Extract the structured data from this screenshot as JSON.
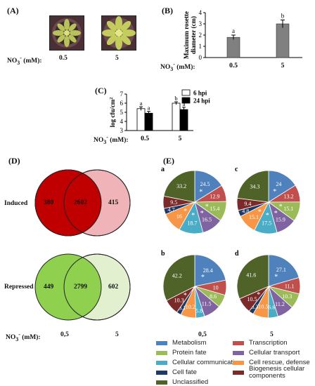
{
  "panels": {
    "A": {
      "letter": "(A)",
      "x_label": "NO3- (mM):",
      "x_label_main": "NO",
      "x_label_sub": "3",
      "x_label_sup": "-",
      "x_label_tail": " (mM):",
      "conditions": [
        "0.5",
        "5"
      ]
    },
    "B": {
      "letter": "(B)",
      "x_label_main": "NO",
      "x_label_sub": "3",
      "x_label_sup": "-",
      "x_label_tail": " (mM):"
    },
    "C": {
      "letter": "(C)",
      "x_label_main": "NO",
      "x_label_sub": "3",
      "x_label_sup": "-",
      "x_label_tail": " (mM):"
    },
    "D": {
      "letter": "(D)",
      "induced_label": "Induced",
      "repressed_label": "Repressed",
      "induced": {
        "left": "380",
        "overlap": "2602",
        "right": "415"
      },
      "repressed": {
        "left": "449",
        "overlap": "2799",
        "right": "602"
      },
      "x_label_main": "NO",
      "x_label_sub": "3",
      "x_label_sup": "-",
      "x_label_tail": " (mM):",
      "conditions": [
        "0,5",
        "5"
      ],
      "colors": {
        "induced_left": "#c00000",
        "induced_right": "#f0b3b8",
        "repressed_left": "#8fd14f",
        "repressed_right": "#e2f0d0"
      }
    },
    "E": {
      "letter": "(E)",
      "conditions": [
        "0,5",
        "5"
      ],
      "legend": [
        {
          "label": "Metabolism",
          "color": "#4f81bd"
        },
        {
          "label": "Transcription",
          "color": "#c0504d"
        },
        {
          "label": "Protein fate",
          "color": "#9bbb59"
        },
        {
          "label": "Cellular transport",
          "color": "#8064a2"
        },
        {
          "label": "Cellular communication",
          "color": "#4bacc6"
        },
        {
          "label": "Cell rescue, defense",
          "color": "#f79646"
        },
        {
          "label": "Cell fate",
          "color": "#1f3864"
        },
        {
          "label": "Biogenesis cellular components",
          "color": "#7b2a2a"
        },
        {
          "label": "Unclassified",
          "color": "#4f6228"
        }
      ]
    }
  },
  "chart_data": [
    {
      "type": "bar",
      "panel": "B",
      "categories": [
        "0.5",
        "5"
      ],
      "values": [
        1.8,
        3.0
      ],
      "errors": [
        0.2,
        0.35
      ],
      "significance": [
        "a",
        "b"
      ],
      "ylabel": "Maximum rosette diameter (cm)",
      "ylim": [
        0,
        4
      ],
      "yticks": [
        "0",
        "1",
        "2",
        "3",
        "4"
      ],
      "color": "#808080"
    },
    {
      "type": "bar",
      "panel": "C",
      "categories": [
        "0.5",
        "5"
      ],
      "series": [
        {
          "name": "6 hpi",
          "values": [
            5.4,
            6.0
          ],
          "errors": [
            0.2,
            0.15
          ],
          "significance": [
            "a",
            "b"
          ],
          "color": "#ffffff"
        },
        {
          "name": "24 hpi",
          "values": [
            4.9,
            5.3
          ],
          "errors": [
            0.2,
            0.25
          ],
          "significance": [
            "a",
            "a"
          ],
          "color": "#000000"
        }
      ],
      "ylabel": "log cfu/cm2",
      "ylabel_main": "log cfu/cm",
      "ylabel_sup": "2",
      "ylim": [
        3,
        7
      ],
      "yticks": [
        "3",
        "4",
        "5",
        "6",
        "7"
      ]
    },
    {
      "type": "pie",
      "panel": "a",
      "labels": [
        "Metabolism",
        "Transcription",
        "Protein fate",
        "Cellular transport",
        "Cellular communication",
        "Cell rescue, defense",
        "Cell fate",
        "Biogenesis cellular components",
        "Unclassified"
      ],
      "values": [
        24.5,
        12.9,
        15.4,
        16.5,
        18.7,
        16,
        4.7,
        9.5,
        33.2
      ],
      "value_labels": [
        "24.5",
        "12.9",
        "15.4",
        "16.5",
        "18.7",
        "16",
        "4.7",
        "9.5",
        "33.2"
      ]
    },
    {
      "type": "pie",
      "panel": "b",
      "labels": [
        "Metabolism",
        "Transcription",
        "Protein fate",
        "Cellular transport",
        "Cellular communication",
        "Cell rescue, defense",
        "Cell fate",
        "Biogenesis cellular components",
        "Unclassified"
      ],
      "values": [
        28.4,
        10,
        8.6,
        11.5,
        5.8,
        10.2,
        3.1,
        10.3,
        42.2
      ],
      "value_labels": [
        "28.4",
        "10",
        "8.6",
        "11.5",
        "5.8",
        "10.2",
        "3.1",
        "10.3",
        "42.2"
      ]
    },
    {
      "type": "pie",
      "panel": "c",
      "labels": [
        "Metabolism",
        "Transcription",
        "Protein fate",
        "Cellular transport",
        "Cellular communication",
        "Cell rescue, defense",
        "Cell fate",
        "Biogenesis cellular components",
        "Unclassified"
      ],
      "values": [
        24,
        13.2,
        15.1,
        15.9,
        17.5,
        15.1,
        4.8,
        9.4,
        34.3
      ],
      "value_labels": [
        "24",
        "13.2",
        "15.1",
        "15.9",
        "17.5",
        "15.1",
        "4.8",
        "9.4",
        "34.3"
      ]
    },
    {
      "type": "pie",
      "panel": "d",
      "labels": [
        "Metabolism",
        "Transcription",
        "Protein fate",
        "Cellular transport",
        "Cellular communication",
        "Cell rescue, defense",
        "Cell fate",
        "Biogenesis cellular components",
        "Unclassified"
      ],
      "values": [
        27.1,
        11.1,
        10.3,
        11.2,
        6.6,
        10.5,
        3.3,
        10.5,
        41.6
      ],
      "value_labels": [
        "27.1",
        "11.1",
        "10.3",
        "11.2",
        "6.6",
        "10.5",
        "3.3",
        "10.5",
        "41.6"
      ]
    }
  ]
}
